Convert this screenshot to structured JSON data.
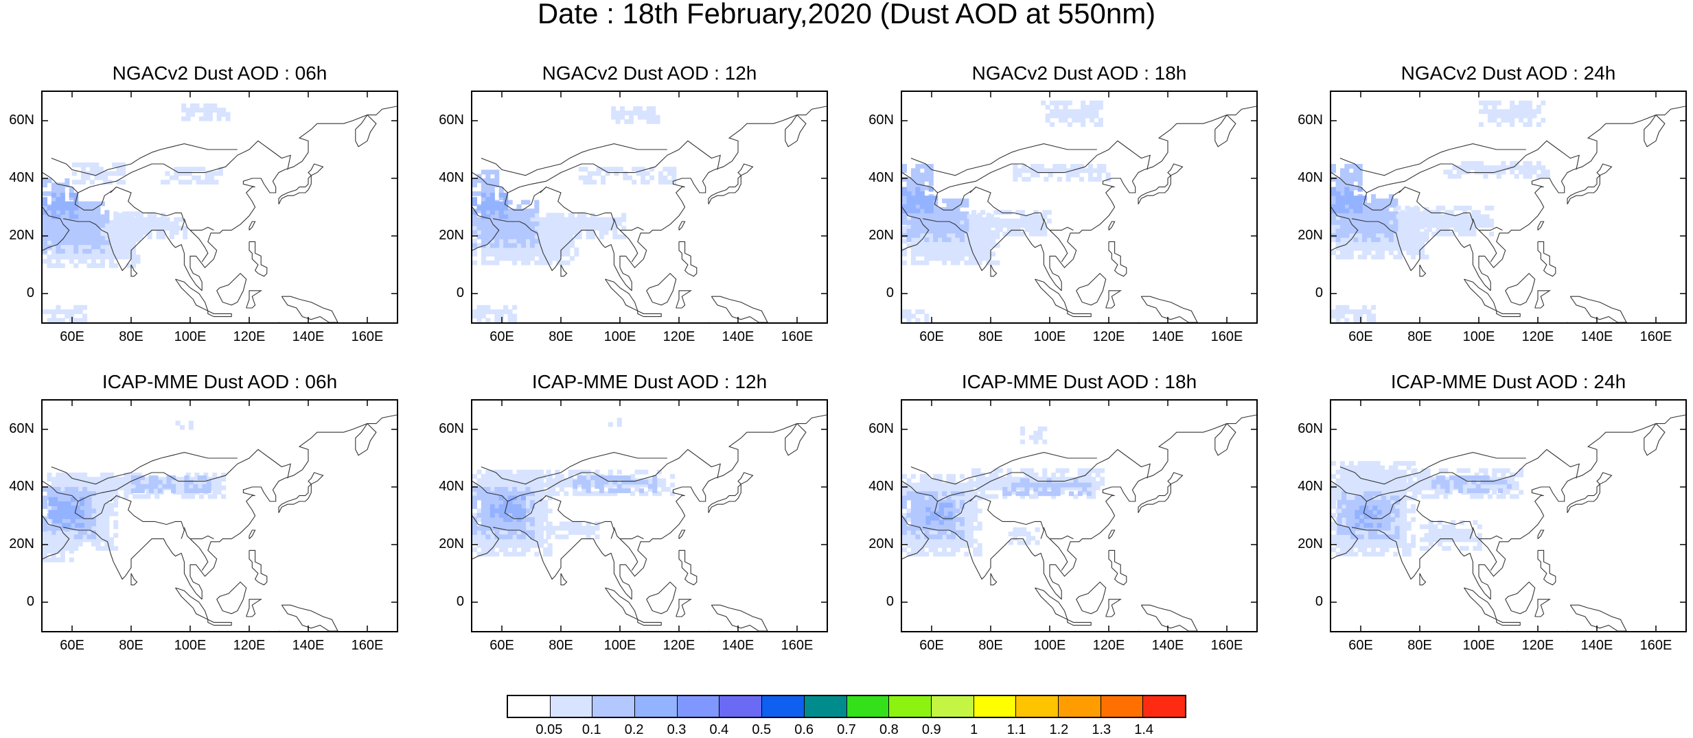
{
  "title": "Date : 18th February,2020 (Dust AOD at 550nm)",
  "panels": [
    {
      "title": "NGACv2 Dust AOD : 06h",
      "model": "NGACv2",
      "hour": "06h"
    },
    {
      "title": "NGACv2 Dust AOD : 12h",
      "model": "NGACv2",
      "hour": "12h"
    },
    {
      "title": "NGACv2 Dust AOD : 18h",
      "model": "NGACv2",
      "hour": "18h"
    },
    {
      "title": "NGACv2 Dust AOD : 24h",
      "model": "NGACv2",
      "hour": "24h"
    },
    {
      "title": "ICAP-MME Dust AOD : 06h",
      "model": "ICAP-MME",
      "hour": "06h"
    },
    {
      "title": "ICAP-MME Dust AOD : 12h",
      "model": "ICAP-MME",
      "hour": "12h"
    },
    {
      "title": "ICAP-MME Dust AOD : 18h",
      "model": "ICAP-MME",
      "hour": "18h"
    },
    {
      "title": "ICAP-MME Dust AOD : 24h",
      "model": "ICAP-MME",
      "hour": "24h"
    }
  ],
  "lat_labels": [
    "60N",
    "40N",
    "20N",
    "0"
  ],
  "lon_labels": [
    "60E",
    "80E",
    "100E",
    "120E",
    "140E",
    "160E"
  ],
  "map_extent": {
    "lon_min": 50,
    "lon_max": 170,
    "lat_min": -10,
    "lat_max": 70
  },
  "colorbar": {
    "colors": [
      "#ffffff",
      "#d7e3ff",
      "#b3c8ff",
      "#93b2ff",
      "#7f97ff",
      "#6a6af5",
      "#0f5ff0",
      "#008c8c",
      "#33e01a",
      "#8cf20f",
      "#c3f542",
      "#ffff00",
      "#ffc400",
      "#ff9d00",
      "#ff7000",
      "#ff2a12"
    ],
    "labels": [
      "0.05",
      "0.1",
      "0.2",
      "0.3",
      "0.4",
      "0.5",
      "0.6",
      "0.7",
      "0.8",
      "0.9",
      "1",
      "1.1",
      "1.2",
      "1.3",
      "1.4"
    ]
  },
  "dust_fields": {
    "ngac_06": [
      {
        "lon": [
          50,
          82
        ],
        "lat": [
          9,
          28
        ],
        "level": 1
      },
      {
        "lon": [
          50,
          72
        ],
        "lat": [
          14,
          32
        ],
        "level": 2
      },
      {
        "lon": [
          72,
          98
        ],
        "lat": [
          19,
          27
        ],
        "level": 1
      },
      {
        "lon": [
          50,
          60
        ],
        "lat": [
          22,
          40
        ],
        "level": 2
      },
      {
        "lon": [
          50,
          62
        ],
        "lat": [
          26,
          34
        ],
        "level": 3
      },
      {
        "lon": [
          90,
          110
        ],
        "lat": [
          38,
          43
        ],
        "level": 1
      },
      {
        "lon": [
          97,
          113
        ],
        "lat": [
          60,
          66
        ],
        "level": 1
      },
      {
        "lon": [
          60,
          78
        ],
        "lat": [
          38,
          45
        ],
        "level": 1
      },
      {
        "lon": [
          50,
          64
        ],
        "lat": [
          -10,
          -4
        ],
        "level": 1
      }
    ],
    "ngac_12": [
      {
        "lon": [
          50,
          85
        ],
        "lat": [
          10,
          28
        ],
        "level": 1
      },
      {
        "lon": [
          50,
          72
        ],
        "lat": [
          16,
          32
        ],
        "level": 2
      },
      {
        "lon": [
          72,
          101
        ],
        "lat": [
          19,
          28
        ],
        "level": 1
      },
      {
        "lon": [
          50,
          60
        ],
        "lat": [
          22,
          42
        ],
        "level": 2
      },
      {
        "lon": [
          50,
          62
        ],
        "lat": [
          26,
          34
        ],
        "level": 3
      },
      {
        "lon": [
          86,
          118
        ],
        "lat": [
          38,
          43
        ],
        "level": 1
      },
      {
        "lon": [
          97,
          113
        ],
        "lat": [
          59,
          65
        ],
        "level": 1
      },
      {
        "lon": [
          50,
          64
        ],
        "lat": [
          -10,
          -4
        ],
        "level": 1
      }
    ],
    "ngac_18": [
      {
        "lon": [
          50,
          82
        ],
        "lat": [
          10,
          28
        ],
        "level": 1
      },
      {
        "lon": [
          50,
          72
        ],
        "lat": [
          18,
          32
        ],
        "level": 2
      },
      {
        "lon": [
          72,
          100
        ],
        "lat": [
          20,
          28
        ],
        "level": 1
      },
      {
        "lon": [
          50,
          60
        ],
        "lat": [
          24,
          44
        ],
        "level": 2
      },
      {
        "lon": [
          50,
          62
        ],
        "lat": [
          28,
          36
        ],
        "level": 3
      },
      {
        "lon": [
          86,
          120
        ],
        "lat": [
          39,
          45
        ],
        "level": 1
      },
      {
        "lon": [
          97,
          118
        ],
        "lat": [
          58,
          66
        ],
        "level": 1
      },
      {
        "lon": [
          50,
          58
        ],
        "lat": [
          -10,
          -6
        ],
        "level": 1
      }
    ],
    "ngac_24": [
      {
        "lon": [
          50,
          82
        ],
        "lat": [
          12,
          30
        ],
        "level": 1
      },
      {
        "lon": [
          50,
          72
        ],
        "lat": [
          18,
          34
        ],
        "level": 2
      },
      {
        "lon": [
          72,
          104
        ],
        "lat": [
          20,
          30
        ],
        "level": 1
      },
      {
        "lon": [
          50,
          60
        ],
        "lat": [
          24,
          44
        ],
        "level": 2
      },
      {
        "lon": [
          50,
          62
        ],
        "lat": [
          28,
          36
        ],
        "level": 3
      },
      {
        "lon": [
          88,
          124
        ],
        "lat": [
          40,
          46
        ],
        "level": 1
      },
      {
        "lon": [
          100,
          122
        ],
        "lat": [
          58,
          66
        ],
        "level": 1
      },
      {
        "lon": [
          50,
          64
        ],
        "lat": [
          -10,
          -4
        ],
        "level": 1
      }
    ],
    "icap_06": [
      {
        "lon": [
          50,
          75
        ],
        "lat": [
          18,
          45
        ],
        "level": 1
      },
      {
        "lon": [
          50,
          68
        ],
        "lat": [
          22,
          40
        ],
        "level": 2
      },
      {
        "lon": [
          52,
          64
        ],
        "lat": [
          26,
          36
        ],
        "level": 3
      },
      {
        "lon": [
          70,
          112
        ],
        "lat": [
          36,
          45
        ],
        "level": 1
      },
      {
        "lon": [
          80,
          106
        ],
        "lat": [
          38,
          43
        ],
        "level": 2
      },
      {
        "lon": [
          50,
          60
        ],
        "lat": [
          14,
          24
        ],
        "level": 1
      },
      {
        "lon": [
          95,
          100
        ],
        "lat": [
          60,
          63
        ],
        "level": 1
      }
    ],
    "icap_12": [
      {
        "lon": [
          50,
          76
        ],
        "lat": [
          16,
          46
        ],
        "level": 1
      },
      {
        "lon": [
          50,
          70
        ],
        "lat": [
          22,
          40
        ],
        "level": 2
      },
      {
        "lon": [
          56,
          68
        ],
        "lat": [
          28,
          36
        ],
        "level": 3
      },
      {
        "lon": [
          72,
          118
        ],
        "lat": [
          37,
          45
        ],
        "level": 1
      },
      {
        "lon": [
          84,
          112
        ],
        "lat": [
          38,
          43
        ],
        "level": 2
      },
      {
        "lon": [
          75,
          92
        ],
        "lat": [
          22,
          28
        ],
        "level": 1
      },
      {
        "lon": [
          96,
          100
        ],
        "lat": [
          61,
          64
        ],
        "level": 1
      }
    ],
    "icap_18": [
      {
        "lon": [
          50,
          76
        ],
        "lat": [
          16,
          44
        ],
        "level": 1
      },
      {
        "lon": [
          50,
          70
        ],
        "lat": [
          22,
          38
        ],
        "level": 2
      },
      {
        "lon": [
          58,
          66
        ],
        "lat": [
          27,
          34
        ],
        "level": 3
      },
      {
        "lon": [
          72,
          118
        ],
        "lat": [
          36,
          46
        ],
        "level": 1
      },
      {
        "lon": [
          84,
          114
        ],
        "lat": [
          37,
          43
        ],
        "level": 2
      },
      {
        "lon": [
          86,
          96
        ],
        "lat": [
          20,
          26
        ],
        "level": 1
      },
      {
        "lon": [
          90,
          98
        ],
        "lat": [
          55,
          60
        ],
        "level": 1
      }
    ],
    "icap_24": [
      {
        "lon": [
          50,
          78
        ],
        "lat": [
          16,
          48
        ],
        "level": 1
      },
      {
        "lon": [
          52,
          72
        ],
        "lat": [
          22,
          38
        ],
        "level": 2
      },
      {
        "lon": [
          58,
          66
        ],
        "lat": [
          26,
          33
        ],
        "level": 3
      },
      {
        "lon": [
          76,
          114
        ],
        "lat": [
          36,
          46
        ],
        "level": 1
      },
      {
        "lon": [
          84,
          110
        ],
        "lat": [
          38,
          43
        ],
        "level": 2
      },
      {
        "lon": [
          80,
          100
        ],
        "lat": [
          18,
          28
        ],
        "level": 1
      }
    ]
  }
}
